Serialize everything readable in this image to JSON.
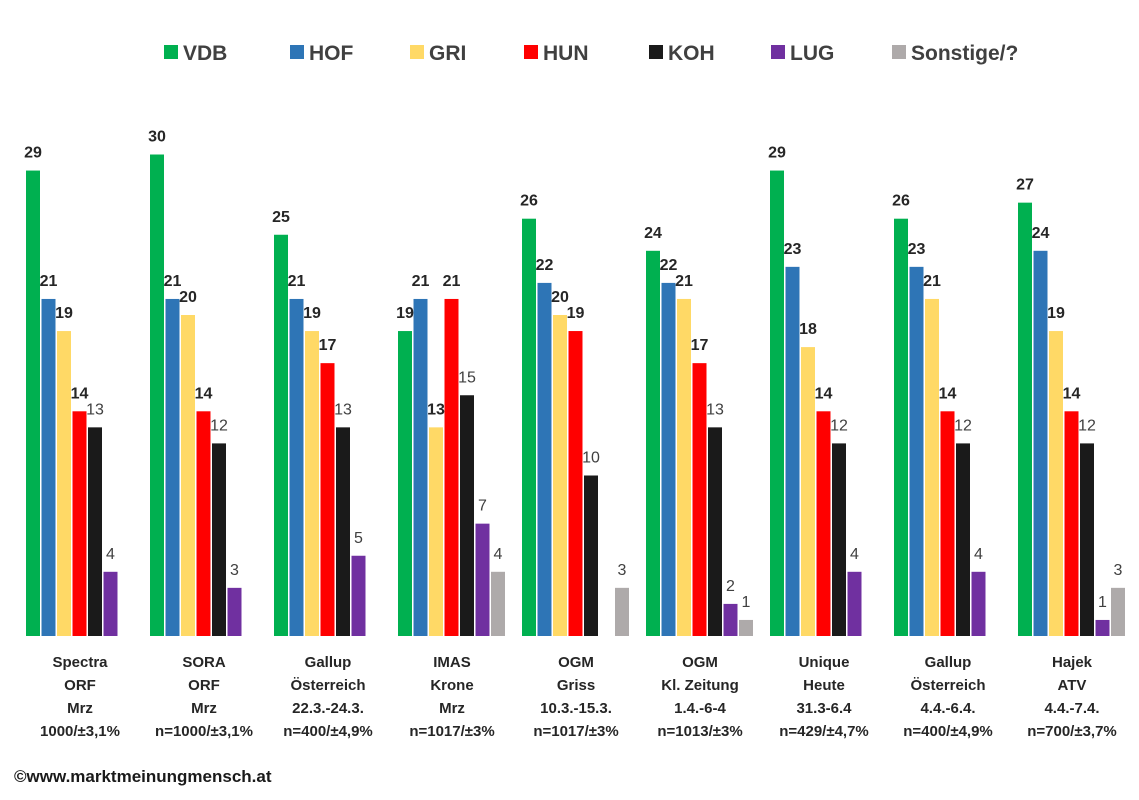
{
  "chart_data": {
    "type": "bar",
    "series": [
      {
        "name": "VDB",
        "color": "#00b050",
        "values": [
          29,
          30,
          25,
          19,
          26,
          24,
          29,
          26,
          27
        ],
        "bold_labels": true
      },
      {
        "name": "HOF",
        "color": "#2e75b6",
        "values": [
          21,
          21,
          21,
          21,
          22,
          22,
          23,
          23,
          24
        ],
        "bold_labels": true
      },
      {
        "name": "GRI",
        "color": "#ffd966",
        "values": [
          19,
          20,
          19,
          13,
          20,
          21,
          18,
          21,
          19
        ],
        "bold_labels": true
      },
      {
        "name": "HUN",
        "color": "#ff0000",
        "values": [
          14,
          14,
          17,
          21,
          19,
          17,
          14,
          14,
          14
        ],
        "bold_labels": true
      },
      {
        "name": "KOH",
        "color": "#1a1a1a",
        "values": [
          13,
          12,
          13,
          15,
          10,
          13,
          12,
          12,
          12
        ],
        "bold_labels": false
      },
      {
        "name": "LUG",
        "color": "#7030a0",
        "values": [
          4,
          3,
          5,
          7,
          null,
          2,
          4,
          4,
          1
        ],
        "bold_labels": false
      },
      {
        "name": "Sonstige/?",
        "color": "#aeaaaa",
        "values": [
          null,
          null,
          null,
          4,
          3,
          1,
          null,
          null,
          3
        ],
        "bold_labels": false
      }
    ],
    "categories": [
      [
        "Spectra",
        "ORF",
        "Mrz",
        "1000/±3,1%"
      ],
      [
        "SORA",
        "ORF",
        "Mrz",
        "n=1000/±3,1%"
      ],
      [
        "Gallup",
        "Österreich",
        "22.3.-24.3.",
        "n=400/±4,9%"
      ],
      [
        "IMAS",
        "Krone",
        "Mrz",
        "n=1017/±3%"
      ],
      [
        "OGM",
        "Griss",
        "10.3.-15.3.",
        "n=1017/±3%"
      ],
      [
        "OGM",
        "Kl. Zeitung",
        "1.4.-6-4",
        "n=1013/±3%"
      ],
      [
        "Unique",
        "Heute",
        "31.3-6.4",
        "n=429/±4,7%"
      ],
      [
        "Gallup",
        "Österreich",
        "4.4.-6.4.",
        "n=400/±4,9%"
      ],
      [
        "Hajek",
        "ATV",
        "4.4.-7.4.",
        "n=700/±3,7%"
      ]
    ],
    "ylim": [
      0,
      29
    ],
    "legend_position": "top",
    "grid": false,
    "footer": "©www.marktmeinungmensch.at"
  }
}
